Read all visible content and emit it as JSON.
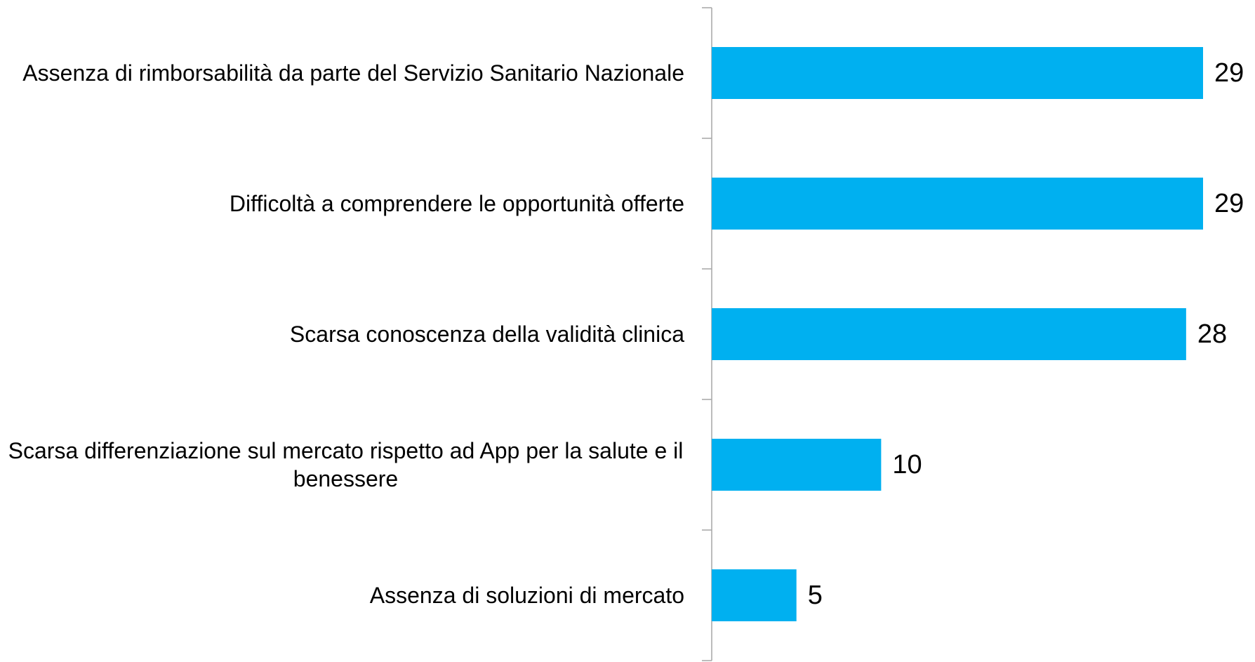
{
  "chart_data": {
    "type": "bar",
    "orientation": "horizontal",
    "categories": [
      "Assenza di rimborsabilità da parte del Servizio Sanitario Nazionale",
      "Difficoltà a comprendere le opportunità offerte",
      "Scarsa conoscenza della validità clinica",
      "Scarsa differenziazione sul mercato rispetto ad App per la salute e il benessere",
      "Assenza di soluzioni di mercato"
    ],
    "values": [
      29,
      29,
      28,
      10,
      5
    ],
    "color": "#00b0f0"
  }
}
